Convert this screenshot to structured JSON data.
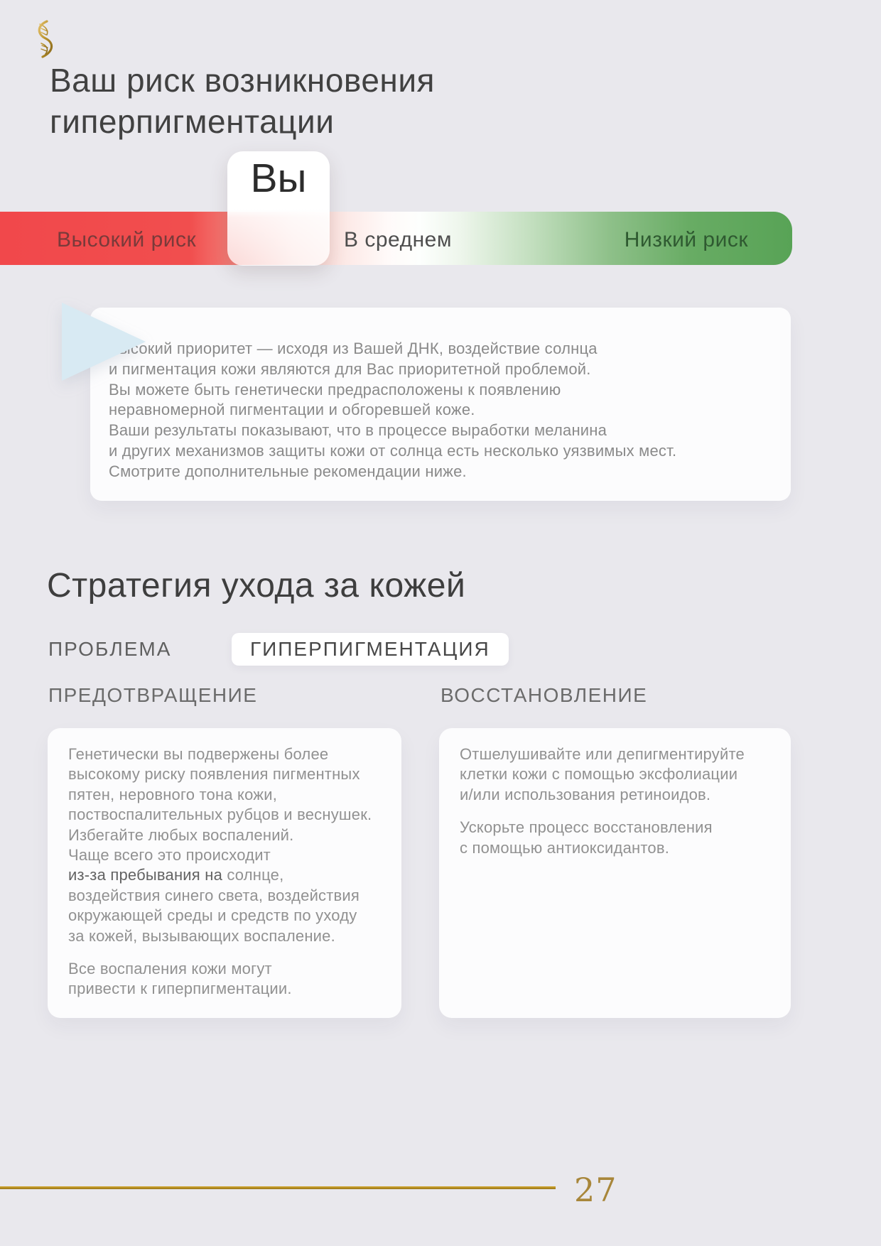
{
  "page": {
    "background": "#e9e8ed",
    "accent_gold": "#b38c22"
  },
  "header": {
    "title_lines": [
      "Ваш риск возникновения",
      "гиперпигментации"
    ]
  },
  "risk_meter": {
    "marker_label": "Вы",
    "labels": {
      "high": "Высокий риск",
      "medium": "В среднем",
      "low": "Низкий риск"
    },
    "colors": {
      "high_end": "#f1484b",
      "low_end": "#58a356",
      "high_text": "#7a3a3a",
      "low_text": "#2f5a31"
    }
  },
  "summary_card": {
    "lines": [
      "Высокий приоритет — исходя из Вашей ДНК, воздействие солнца",
      "и пигментация кожи являются для Вас приоритетной проблемой.",
      "Вы можете быть генетически предрасположены к появлению",
      "неравномерной пигментации и обгоревшей коже.",
      "Ваши результаты показывают, что в процессе выработки меланина",
      "и других механизмов защиты кожи от солнца есть несколько уязвимых мест.",
      "Смотрите дополнительные рекомендации ниже."
    ]
  },
  "strategy": {
    "title": "Стратегия ухода за кожей",
    "problem_label": "ПРОБЛЕМА",
    "problem_value": "ГИПЕРПИГМЕНТАЦИЯ",
    "columns": [
      {
        "header": "ПРЕДОТВРАЩЕНИЕ",
        "paragraphs": [
          [
            "Генетически вы подвержены более",
            "высокому риску появления пигментных",
            "пятен, неровного тона кожи,",
            "поствоспалительных рубцов и веснушек.",
            "Избегайте любых воспалений.",
            "Чаще всего это происходит",
            {
              "em": "из-за пребывания на",
              "t": " солнце,"
            },
            "воздействия синего света, воздействия",
            "окружающей среды и средств по уходу",
            "за кожей, вызывающих воспаление."
          ],
          [
            "Все воспаления кожи могут",
            "привести к гиперпигментации."
          ]
        ]
      },
      {
        "header": "ВОССТАНОВЛЕНИЕ",
        "paragraphs": [
          [
            "Отшелушивайте или депигментируйте",
            "клетки кожи с помощью эксфолиации",
            "и/или использования ретиноидов."
          ],
          [
            "Ускорьте процесс восстановления",
            "с помощью антиоксидантов."
          ]
        ]
      }
    ]
  },
  "footer": {
    "page_number": "27"
  },
  "icons": {
    "logo": "dna-helix",
    "pointer": "triangle-right"
  }
}
